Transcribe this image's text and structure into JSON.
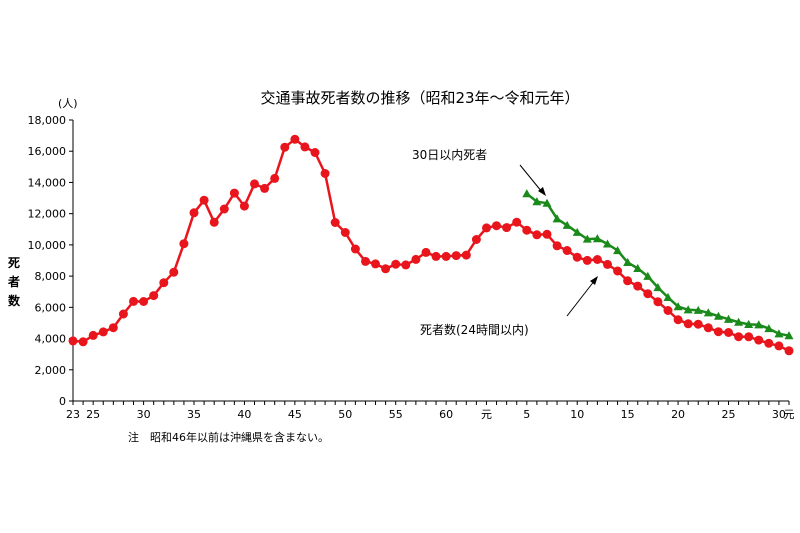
{
  "chart_data": {
    "type": "line",
    "title": "交通事故死者数の推移（昭和23年～令和元年）",
    "unit_label": "(人)",
    "ylabel": [
      "死",
      "者",
      "数"
    ],
    "ylim": [
      0,
      18000
    ],
    "yticks": [
      0,
      2000,
      4000,
      6000,
      8000,
      10000,
      12000,
      14000,
      16000,
      18000
    ],
    "ytick_labels": [
      "0",
      "2,000",
      "4,000",
      "6,000",
      "8,000",
      "10,000",
      "12,000",
      "14,000",
      "16,000",
      "18,000"
    ],
    "x_range": [
      0,
      71
    ],
    "xticks": [
      {
        "i": 0,
        "label": "23"
      },
      {
        "i": 2,
        "label": "25"
      },
      {
        "i": 7,
        "label": "30"
      },
      {
        "i": 12,
        "label": "35"
      },
      {
        "i": 17,
        "label": "40"
      },
      {
        "i": 22,
        "label": "45"
      },
      {
        "i": 27,
        "label": "50"
      },
      {
        "i": 32,
        "label": "55"
      },
      {
        "i": 37,
        "label": "60"
      },
      {
        "i": 41,
        "label": "元"
      },
      {
        "i": 45,
        "label": "5"
      },
      {
        "i": 50,
        "label": "10"
      },
      {
        "i": 55,
        "label": "15"
      },
      {
        "i": 60,
        "label": "20"
      },
      {
        "i": 65,
        "label": "25"
      },
      {
        "i": 70,
        "label": "30"
      },
      {
        "i": 71,
        "label": "元"
      }
    ],
    "grid": false,
    "series": [
      {
        "name": "死者数(24時間以内)",
        "color": "#e8161c",
        "marker": "circle",
        "start_index": 0,
        "values": [
          3848,
          3790,
          4202,
          4429,
          4696,
          5576,
          6379,
          6374,
          6751,
          7575,
          8248,
          10079,
          12055,
          12865,
          11445,
          12301,
          13318,
          12484,
          13904,
          13618,
          14256,
          16257,
          16765,
          16278,
          15918,
          14574,
          11432,
          10792,
          9734,
          8945,
          8783,
          8466,
          8760,
          8719,
          9073,
          9520,
          9262,
          9261,
          9317,
          9347,
          10344,
          11086,
          11227,
          11105,
          11452,
          10942,
          10649,
          10679,
          9942,
          9640,
          9211,
          9006,
          9066,
          8747,
          8326,
          7702,
          7358,
          6871,
          6352,
          5796,
          5209,
          4948,
          4922,
          4691,
          4438,
          4388,
          4117,
          4113,
          3904,
          3694,
          3532,
          3215
        ]
      },
      {
        "name": "30日以内死者",
        "color": "#1a8a1a",
        "marker": "triangle",
        "start_index": 45,
        "values": [
          13280,
          12768,
          12670,
          11674,
          11254,
          10805,
          10372,
          10403,
          10060,
          9640,
          8877,
          8492,
          7989,
          7272,
          6639,
          6044,
          5844,
          5808,
          5650,
          5432,
          5239,
          5047,
          4905,
          4885,
          4639,
          4308,
          4184
        ]
      }
    ],
    "annotations": [
      "30日以内死者",
      "死者数(24時間以内)"
    ]
  },
  "note": "注　昭和46年以前は沖縄県を含まない。"
}
